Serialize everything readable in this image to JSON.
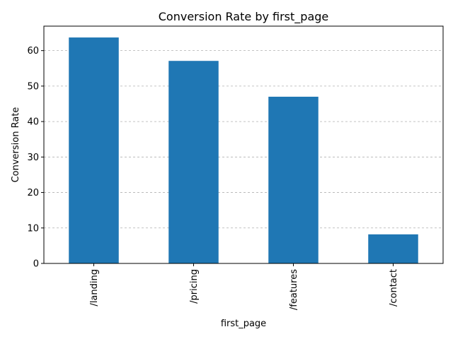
{
  "chart_data": {
    "type": "bar",
    "title": "Conversion Rate by first_page",
    "xlabel": "first_page",
    "ylabel": "Conversion Rate",
    "categories": [
      "/landing",
      "/pricing",
      "/features",
      "/contact"
    ],
    "values": [
      63.7,
      57.1,
      47.0,
      8.2
    ],
    "ylim": [
      0,
      66.9
    ],
    "yticks": [
      0,
      10,
      20,
      30,
      40,
      50,
      60
    ],
    "grid": "y",
    "bar_color": "#1f77b4",
    "grid_color": "#b0b0b0"
  }
}
